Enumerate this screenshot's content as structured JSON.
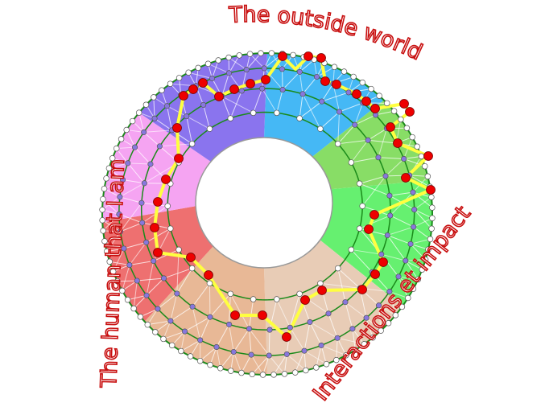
{
  "labels": {
    "top": "The outside world",
    "left": "The human that I am",
    "right": "Interactions et impact"
  },
  "sectors": [
    {
      "name": "blue",
      "color": "#45b8f5"
    },
    {
      "name": "green",
      "color": "#88dd66"
    },
    {
      "name": "bright-green",
      "color": "#66f070"
    },
    {
      "name": "light-peach",
      "color": "#e8ccb6"
    },
    {
      "name": "peach",
      "color": "#e8b896"
    },
    {
      "name": "red",
      "color": "#ee7070"
    },
    {
      "name": "pink",
      "color": "#f5a4f2"
    },
    {
      "name": "purple",
      "color": "#8a74ee"
    }
  ],
  "colors": {
    "ring_line": "#1a8a1a",
    "path": "#ffff40",
    "path_node": "#ee0000",
    "mid_node": "#8877dd",
    "text": "#c81010"
  }
}
